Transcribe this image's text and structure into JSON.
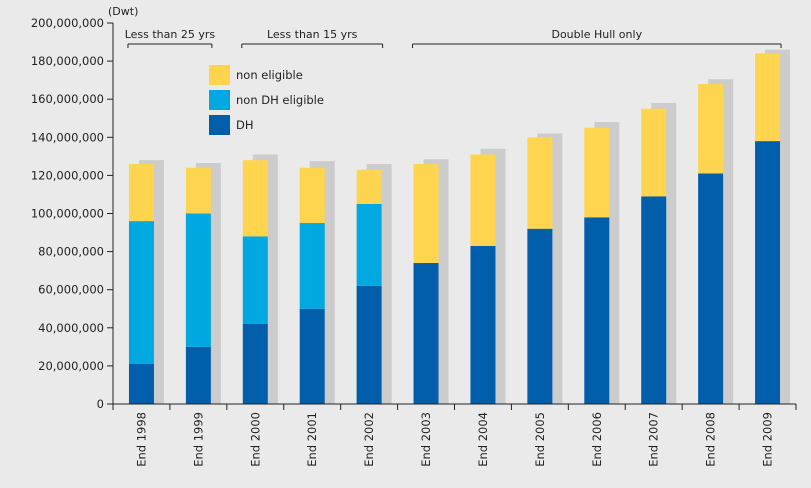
{
  "chart_data": {
    "type": "bar",
    "stacked": true,
    "unit_label": "(Dwt)",
    "categories": [
      "End 1998",
      "End 1999",
      "End 2000",
      "End 2001",
      "End 2002",
      "End 2003",
      "End 2004",
      "End 2005",
      "End 2006",
      "End 2007",
      "End 2008",
      "End 2009"
    ],
    "series": [
      {
        "name": "DH",
        "color": "#005eaa",
        "values": [
          21000000,
          30000000,
          42000000,
          50000000,
          62000000,
          74000000,
          83000000,
          92000000,
          98000000,
          109000000,
          121000000,
          138000000
        ]
      },
      {
        "name": "non DH eligible",
        "color": "#00a8e1",
        "values": [
          75000000,
          70000000,
          46000000,
          45000000,
          43000000,
          0,
          0,
          0,
          0,
          0,
          0,
          0
        ]
      },
      {
        "name": "non eligible",
        "color": "#ffd54f",
        "values": [
          30000000,
          24000000,
          40000000,
          29000000,
          18000000,
          52000000,
          48000000,
          48000000,
          47000000,
          46000000,
          47000000,
          46000000
        ]
      }
    ],
    "shadow_totals": [
      128000000,
      126500000,
      131000000,
      127500000,
      126000000,
      128500000,
      134000000,
      142000000,
      148000000,
      158000000,
      170500000,
      186000000
    ],
    "shadow_color": "#cccccc",
    "ylim": [
      0,
      200000000
    ],
    "yticks": [
      0,
      20000000,
      40000000,
      60000000,
      80000000,
      100000000,
      120000000,
      140000000,
      160000000,
      180000000,
      200000000
    ],
    "ytick_labels": [
      "0",
      "20,000,000",
      "40,000,000",
      "60,000,000",
      "80,000,000",
      "100,000,000",
      "120,000,000",
      "140,000,000",
      "160,000,000",
      "180,000,000",
      "200,000,000"
    ],
    "legend": [
      "non eligible",
      "non DH eligible",
      "DH"
    ],
    "annotations": [
      {
        "label": "Less than 25 yrs",
        "from": 0,
        "to": 1
      },
      {
        "label": "Less than 15 yrs",
        "from": 2,
        "to": 4
      },
      {
        "label": "Double Hull only",
        "from": 5,
        "to": 11
      }
    ],
    "background": "#eaeaea"
  }
}
